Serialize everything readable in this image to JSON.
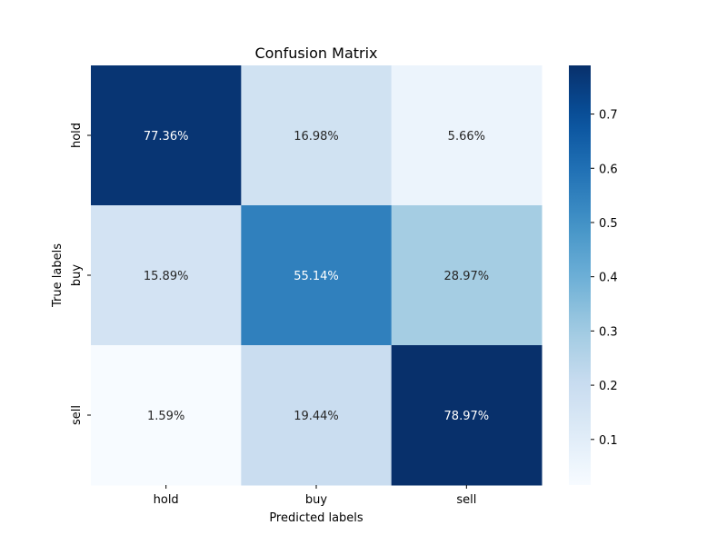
{
  "chart_data": {
    "type": "heatmap",
    "title": "Confusion Matrix",
    "xlabel": "Predicted labels",
    "ylabel": "True labels",
    "x_categories": [
      "hold",
      "buy",
      "sell"
    ],
    "y_categories": [
      "hold",
      "buy",
      "sell"
    ],
    "values": [
      [
        0.7736,
        0.1698,
        0.0566
      ],
      [
        0.1589,
        0.5514,
        0.2897
      ],
      [
        0.0159,
        0.1944,
        0.7897
      ]
    ],
    "annotations": [
      [
        "77.36%",
        "16.98%",
        "5.66%"
      ],
      [
        "15.89%",
        "55.14%",
        "28.97%"
      ],
      [
        "1.59%",
        "19.44%",
        "78.97%"
      ]
    ],
    "colormap": "Blues",
    "colorbar": {
      "min": 0.0159,
      "max": 0.7897,
      "ticks": [
        0.1,
        0.2,
        0.3,
        0.4,
        0.5,
        0.6,
        0.7
      ],
      "tick_labels": [
        "0.1",
        "0.2",
        "0.3",
        "0.4",
        "0.5",
        "0.6",
        "0.7"
      ]
    },
    "grid": false
  }
}
